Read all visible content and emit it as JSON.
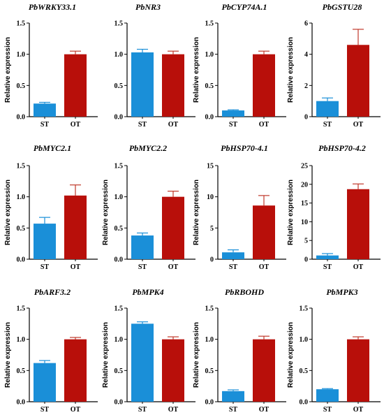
{
  "colors": {
    "ST": "#1a8fd8",
    "OT": "#b80f0a",
    "axis": "#000000",
    "error_bar": "#c0392b"
  },
  "chart_data": [
    {
      "type": "bar",
      "title": "PbWRKY33.1",
      "ylabel": "Relative expression",
      "categories": [
        "ST",
        "OT"
      ],
      "values": [
        0.21,
        1.0
      ],
      "errors": [
        0.02,
        0.05
      ],
      "ylim": [
        0,
        1.5
      ],
      "yticks": [
        0.0,
        0.5,
        1.0,
        1.5
      ],
      "ytick_labels": [
        "0.0",
        "0.5",
        "1.0",
        "1.5"
      ]
    },
    {
      "type": "bar",
      "title": "PbNR3",
      "ylabel": "",
      "categories": [
        "ST",
        "OT"
      ],
      "values": [
        1.03,
        1.0
      ],
      "errors": [
        0.05,
        0.05
      ],
      "ylim": [
        0,
        1.5
      ],
      "yticks": [
        0.0,
        0.5,
        1.0,
        1.5
      ],
      "ytick_labels": [
        "0.0",
        "0.5",
        "1.0",
        "1.5"
      ]
    },
    {
      "type": "bar",
      "title": "PbCYP74A.1",
      "ylabel": "Relative expression",
      "categories": [
        "ST",
        "OT"
      ],
      "values": [
        0.1,
        1.0
      ],
      "errors": [
        0.01,
        0.05
      ],
      "ylim": [
        0,
        1.5
      ],
      "yticks": [
        0.0,
        0.5,
        1.0,
        1.5
      ],
      "ytick_labels": [
        "0.0",
        "0.5",
        "1.0",
        "1.5"
      ]
    },
    {
      "type": "bar",
      "title": "PbGSTU28",
      "ylabel": "Relative expression",
      "categories": [
        "ST",
        "OT"
      ],
      "values": [
        1.0,
        4.6
      ],
      "errors": [
        0.2,
        1.0
      ],
      "ylim": [
        0,
        6
      ],
      "yticks": [
        0,
        2,
        4,
        6
      ],
      "ytick_labels": [
        "0",
        "2",
        "4",
        "6"
      ]
    },
    {
      "type": "bar",
      "title": "PbMYC2.1",
      "ylabel": "Relative expression",
      "categories": [
        "ST",
        "OT"
      ],
      "values": [
        0.57,
        1.02
      ],
      "errors": [
        0.1,
        0.17
      ],
      "ylim": [
        0,
        1.5
      ],
      "yticks": [
        0.0,
        0.5,
        1.0,
        1.5
      ],
      "ytick_labels": [
        "0.0",
        "0.5",
        "1.0",
        "1.5"
      ]
    },
    {
      "type": "bar",
      "title": "PbMYC2.2",
      "ylabel": "Relative expression",
      "categories": [
        "ST",
        "OT"
      ],
      "values": [
        0.38,
        1.0
      ],
      "errors": [
        0.04,
        0.09
      ],
      "ylim": [
        0,
        1.5
      ],
      "yticks": [
        0.0,
        0.5,
        1.0,
        1.5
      ],
      "ytick_labels": [
        "0.0",
        "0.5",
        "1.0",
        "1.5"
      ]
    },
    {
      "type": "bar",
      "title": "PbHSP70-4.1",
      "ylabel": "Relative expression",
      "categories": [
        "ST",
        "OT"
      ],
      "values": [
        1.1,
        8.6
      ],
      "errors": [
        0.4,
        1.6
      ],
      "ylim": [
        0,
        15
      ],
      "yticks": [
        0,
        5,
        10,
        15
      ],
      "ytick_labels": [
        "0",
        "5",
        "10",
        "15"
      ]
    },
    {
      "type": "bar",
      "title": "PbHSP70-4.2",
      "ylabel": "Relative expression",
      "categories": [
        "ST",
        "OT"
      ],
      "values": [
        1.0,
        18.7
      ],
      "errors": [
        0.5,
        1.4
      ],
      "ylim": [
        0,
        25
      ],
      "yticks": [
        0,
        5,
        10,
        15,
        20,
        25
      ],
      "ytick_labels": [
        "0",
        "5",
        "10",
        "15",
        "20",
        "25"
      ]
    },
    {
      "type": "bar",
      "title": "PbARF3.2",
      "ylabel": "Relative expression",
      "categories": [
        "ST",
        "OT"
      ],
      "values": [
        0.62,
        1.0
      ],
      "errors": [
        0.04,
        0.03
      ],
      "ylim": [
        0,
        1.5
      ],
      "yticks": [
        0.0,
        0.5,
        1.0,
        1.5
      ],
      "ytick_labels": [
        "0.0",
        "0.5",
        "1.0",
        "1.5"
      ]
    },
    {
      "type": "bar",
      "title": "PbMPK4",
      "ylabel": "Relative expression",
      "categories": [
        "ST",
        "OT"
      ],
      "values": [
        1.25,
        1.0
      ],
      "errors": [
        0.03,
        0.04
      ],
      "ylim": [
        0,
        1.5
      ],
      "yticks": [
        0.0,
        0.5,
        1.0,
        1.5
      ],
      "ytick_labels": [
        "0.0",
        "0.5",
        "1.0",
        "1.5"
      ]
    },
    {
      "type": "bar",
      "title": "PbRBOHD",
      "ylabel": "Relative expression",
      "categories": [
        "ST",
        "OT"
      ],
      "values": [
        0.17,
        1.0
      ],
      "errors": [
        0.02,
        0.05
      ],
      "ylim": [
        0,
        1.5
      ],
      "yticks": [
        0.0,
        0.5,
        1.0,
        1.5
      ],
      "ytick_labels": [
        "0.0",
        "0.5",
        "1.0",
        "1.5"
      ]
    },
    {
      "type": "bar",
      "title": "PbMPK3",
      "ylabel": "Relative expression",
      "categories": [
        "ST",
        "OT"
      ],
      "values": [
        0.2,
        1.0
      ],
      "errors": [
        0.01,
        0.04
      ],
      "ylim": [
        0,
        1.5
      ],
      "yticks": [
        0.0,
        0.5,
        1.0,
        1.5
      ],
      "ytick_labels": [
        "0.0",
        "0.5",
        "1.0",
        "1.5"
      ]
    }
  ]
}
